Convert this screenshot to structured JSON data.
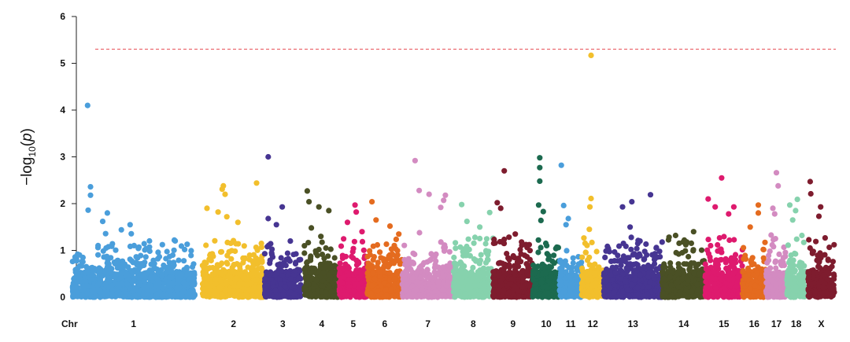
{
  "chart_data": {
    "type": "scatter",
    "subtype": "manhattan",
    "title": "",
    "ylabel": "−log10(p)",
    "ylabel_parts": {
      "prefix": "−log",
      "subscript": "10",
      "suffix": "(p)"
    },
    "xlabel_prefix": "Chr",
    "ylim": [
      0,
      6
    ],
    "yticks": [
      0,
      1,
      2,
      3,
      4,
      5,
      6
    ],
    "threshold": 5.3,
    "threshold_color": "#e8484f",
    "chromosomes": [
      {
        "label": "1",
        "color": "#4a9edb",
        "span": [
          0,
          210
        ],
        "peak": {
          "x": 26,
          "y": 4.1
        },
        "tall": [
          [
            31,
            2.36
          ],
          [
            31,
            2.18
          ],
          [
            27,
            1.86
          ],
          [
            60,
            1.8
          ],
          [
            52,
            1.62
          ],
          [
            99,
            1.55
          ],
          [
            84,
            1.44
          ]
        ]
      },
      {
        "label": "2",
        "color": "#f2bf2c",
        "span": [
          223,
          330
        ],
        "peak": {
          "x": 316,
          "y": 2.44
        },
        "tall": [
          [
            259,
            2.38
          ],
          [
            257,
            2.31
          ],
          [
            262,
            2.2
          ],
          [
            231,
            1.9
          ],
          [
            250,
            1.82
          ],
          [
            265,
            1.72
          ],
          [
            284,
            1.6
          ]
        ]
      },
      {
        "label": "3",
        "color": "#463592",
        "span": [
          330,
          392
        ],
        "peak": {
          "x": 336,
          "y": 3.0
        },
        "tall": [
          [
            360,
            1.93
          ],
          [
            336,
            1.68
          ],
          [
            350,
            1.55
          ],
          [
            374,
            1.2
          ]
        ]
      },
      {
        "label": "4",
        "color": "#4a5025",
        "span": [
          398,
          458
        ],
        "peak": {
          "x": 403,
          "y": 2.27
        },
        "tall": [
          [
            406,
            2.04
          ],
          [
            423,
            1.93
          ],
          [
            440,
            1.85
          ],
          [
            410,
            1.48
          ]
        ]
      },
      {
        "label": "5",
        "color": "#de1a6e",
        "span": [
          458,
          506
        ],
        "peak": {
          "x": 485,
          "y": 1.97
        },
        "tall": [
          [
            487,
            1.82
          ],
          [
            472,
            1.6
          ],
          [
            497,
            1.4
          ]
        ]
      },
      {
        "label": "6",
        "color": "#e46b1f",
        "span": [
          506,
          566
        ],
        "peak": {
          "x": 514,
          "y": 2.04
        },
        "tall": [
          [
            521,
            1.65
          ],
          [
            545,
            1.52
          ],
          [
            560,
            1.35
          ]
        ]
      },
      {
        "label": "7",
        "color": "#d38bc1",
        "span": [
          566,
          654
        ],
        "peak": {
          "x": 588,
          "y": 2.92
        },
        "tall": [
          [
            595,
            2.28
          ],
          [
            612,
            2.2
          ],
          [
            640,
            2.18
          ],
          [
            637,
            2.07
          ],
          [
            632,
            1.92
          ]
        ]
      },
      {
        "label": "8",
        "color": "#86d2ad",
        "span": [
          654,
          722
        ],
        "peak": {
          "x": 668,
          "y": 1.98
        },
        "tall": [
          [
            716,
            1.81
          ],
          [
            677,
            1.62
          ],
          [
            699,
            1.5
          ]
        ]
      },
      {
        "label": "9",
        "color": "#7e1c2e",
        "span": [
          722,
          790
        ],
        "peak": {
          "x": 741,
          "y": 2.7
        },
        "tall": [
          [
            729,
            2.02
          ],
          [
            735,
            1.9
          ],
          [
            760,
            1.35
          ]
        ]
      },
      {
        "label": "10",
        "color": "#1c6a4f",
        "span": [
          790,
          836
        ],
        "peak": {
          "x": 802,
          "y": 2.98
        },
        "tall": [
          [
            802,
            2.77
          ],
          [
            802,
            2.48
          ],
          [
            800,
            1.97
          ],
          [
            808,
            1.83
          ],
          [
            804,
            1.64
          ]
        ]
      },
      {
        "label": "11",
        "color": "#4a9edb",
        "span": [
          836,
          874
        ],
        "peak": {
          "x": 839,
          "y": 2.82
        },
        "tall": [
          [
            843,
            1.96
          ],
          [
            851,
            1.68
          ],
          [
            847,
            1.55
          ]
        ]
      },
      {
        "label": "12",
        "color": "#f2bf2c",
        "span": [
          874,
          912
        ],
        "peak": {
          "x": 890,
          "y": 5.17
        },
        "tall": [
          [
            890,
            2.11
          ],
          [
            888,
            1.93
          ],
          [
            887,
            1.45
          ]
        ]
      },
      {
        "label": "13",
        "color": "#463592",
        "span": [
          912,
          1012
        ],
        "peak": {
          "x": 992,
          "y": 2.19
        },
        "tall": [
          [
            960,
            2.04
          ],
          [
            944,
            1.93
          ],
          [
            957,
            1.5
          ],
          [
            974,
            1.2
          ]
        ]
      },
      {
        "label": "14",
        "color": "#4a5025",
        "span": [
          1012,
          1086
        ],
        "peak": {
          "x": 1066,
          "y": 1.4
        },
        "tall": [
          [
            1035,
            1.32
          ],
          [
            1050,
            1.22
          ]
        ]
      },
      {
        "label": "15",
        "color": "#de1a6e",
        "span": [
          1086,
          1150
        ],
        "peak": {
          "x": 1114,
          "y": 2.55
        },
        "tall": [
          [
            1091,
            2.1
          ],
          [
            1103,
            1.93
          ],
          [
            1135,
            1.93
          ],
          [
            1126,
            1.78
          ]
        ]
      },
      {
        "label": "16",
        "color": "#e46b1f",
        "span": [
          1150,
          1190
        ],
        "peak": {
          "x": 1177,
          "y": 1.97
        },
        "tall": [
          [
            1177,
            1.8
          ],
          [
            1163,
            1.5
          ]
        ]
      },
      {
        "label": "17",
        "color": "#d38bc1",
        "span": [
          1190,
          1226
        ],
        "peak": {
          "x": 1208,
          "y": 2.66
        },
        "tall": [
          [
            1211,
            2.38
          ],
          [
            1202,
            1.9
          ],
          [
            1205,
            1.78
          ]
        ]
      },
      {
        "label": "18",
        "color": "#86d2ad",
        "span": [
          1226,
          1258
        ],
        "peak": {
          "x": 1244,
          "y": 2.09
        },
        "tall": [
          [
            1231,
            1.97
          ],
          [
            1241,
            1.85
          ],
          [
            1236,
            1.65
          ]
        ]
      },
      {
        "label": "X",
        "color": "#7e1c2e",
        "span": [
          1262,
          1308
        ],
        "peak": {
          "x": 1266,
          "y": 2.47
        },
        "tall": [
          [
            1267,
            2.21
          ],
          [
            1284,
            1.93
          ],
          [
            1281,
            1.73
          ]
        ]
      }
    ]
  }
}
